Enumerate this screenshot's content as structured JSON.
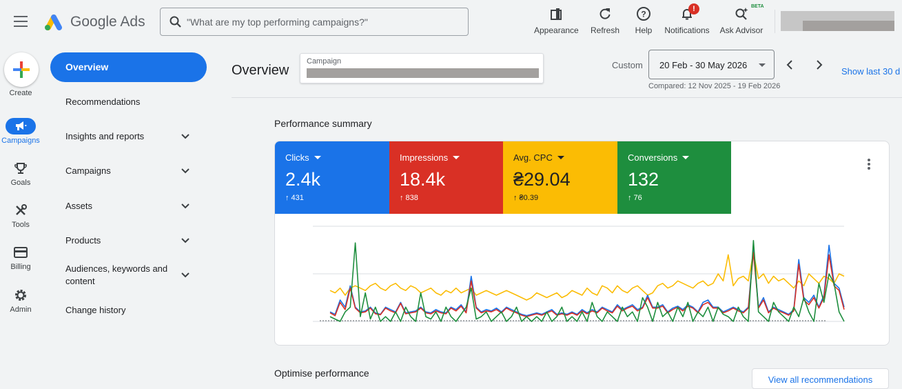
{
  "app": {
    "brand": "Google Ads"
  },
  "search": {
    "placeholder": "\"What are my top performing campaigns?\""
  },
  "toolbar": {
    "appearance": "Appearance",
    "refresh": "Refresh",
    "help": "Help",
    "notifications": "Notifications",
    "notifications_badge": "!",
    "ask_advisor": "Ask Advisor",
    "beta_tag": "BETA"
  },
  "rail": {
    "create": "Create",
    "campaigns": "Campaigns",
    "goals": "Goals",
    "tools": "Tools",
    "billing": "Billing",
    "admin": "Admin"
  },
  "nav": {
    "overview": "Overview",
    "recommendations": "Recommendations",
    "insights": "Insights and reports",
    "campaigns": "Campaigns",
    "assets": "Assets",
    "products": "Products",
    "audiences": "Audiences, keywords and content",
    "change_history": "Change history"
  },
  "header": {
    "title": "Overview",
    "campaign_label": "Campaign",
    "custom_label": "Custom",
    "date_range": "20 Feb - 30 May 2026",
    "compared": "Compared: 12 Nov 2025 - 19 Feb 2026",
    "show_last": "Show last 30 d"
  },
  "performance": {
    "title": "Performance summary",
    "metrics": [
      {
        "name": "Clicks",
        "value": "2.4k",
        "delta": "↑ 431",
        "color": "#1a73e8"
      },
      {
        "name": "Impressions",
        "value": "18.4k",
        "delta": "↑ 838",
        "color": "#d93025"
      },
      {
        "name": "Avg. CPC",
        "value": "₴29.04",
        "delta": "↑ ₴0.39",
        "color": "#fbbc04"
      },
      {
        "name": "Conversions",
        "value": "132",
        "delta": "↑ 76",
        "color": "#1e8e3e"
      }
    ]
  },
  "chart_data": {
    "type": "line",
    "series": [
      {
        "name": "Clicks",
        "color": "#1a73e8",
        "values": [
          0.2,
          0.15,
          0.45,
          0.3,
          0.75,
          0.3,
          0.2,
          0.22,
          0.3,
          0.18,
          0.15,
          0.3,
          0.25,
          0.2,
          0.4,
          0.18,
          0.2,
          0.22,
          0.3,
          0.2,
          0.18,
          0.25,
          0.2,
          0.18,
          0.3,
          0.25,
          0.35,
          0.2,
          0.95,
          0.3,
          0.2,
          0.25,
          0.22,
          0.28,
          0.2,
          0.3,
          0.25,
          0.2,
          0.15,
          0.12,
          0.15,
          0.18,
          0.15,
          0.2,
          0.25,
          0.15,
          0.18,
          0.15,
          0.2,
          0.15,
          0.25,
          0.18,
          0.25,
          0.2,
          0.3,
          0.25,
          0.2,
          0.35,
          0.25,
          0.3,
          0.35,
          0.25,
          0.3,
          0.55,
          0.3,
          0.3,
          0.35,
          0.2,
          0.28,
          0.32,
          0.25,
          0.35,
          0.3,
          0.2,
          0.4,
          0.45,
          0.3,
          0.3,
          0.2,
          0.25,
          0.3,
          0.25,
          0.2,
          0.3,
          1.55,
          0.3,
          0.5,
          0.2,
          0.3,
          0.25,
          0.2,
          0.15,
          0.25,
          1.3,
          0.5,
          0.4,
          0.55,
          0.3,
          0.55,
          1.6,
          0.8,
          0.7,
          0.3
        ]
      },
      {
        "name": "Impressions",
        "color": "#d93025",
        "values": [
          0.18,
          0.12,
          0.4,
          0.25,
          0.7,
          0.28,
          0.18,
          0.2,
          0.28,
          0.16,
          0.14,
          0.28,
          0.22,
          0.18,
          0.38,
          0.16,
          0.18,
          0.2,
          0.28,
          0.18,
          0.16,
          0.22,
          0.18,
          0.16,
          0.28,
          0.22,
          0.32,
          0.18,
          0.85,
          0.28,
          0.18,
          0.22,
          0.2,
          0.25,
          0.18,
          0.28,
          0.22,
          0.18,
          0.13,
          0.1,
          0.13,
          0.16,
          0.13,
          0.18,
          0.22,
          0.13,
          0.16,
          0.13,
          0.18,
          0.13,
          0.22,
          0.16,
          0.22,
          0.18,
          0.28,
          0.22,
          0.18,
          0.32,
          0.22,
          0.28,
          0.32,
          0.22,
          0.28,
          0.5,
          0.28,
          0.28,
          0.32,
          0.18,
          0.25,
          0.3,
          0.22,
          0.32,
          0.28,
          0.18,
          0.35,
          0.4,
          0.28,
          0.28,
          0.18,
          0.22,
          0.28,
          0.22,
          0.18,
          0.28,
          1.45,
          0.28,
          0.45,
          0.18,
          0.28,
          0.22,
          0.18,
          0.13,
          0.22,
          1.2,
          0.45,
          0.35,
          0.5,
          0.28,
          0.5,
          1.4,
          0.75,
          0.65,
          0.25
        ]
      },
      {
        "name": "Avg. CPC",
        "color": "#fbbc04",
        "values": [
          0.65,
          0.6,
          0.7,
          0.55,
          0.7,
          0.75,
          0.7,
          0.65,
          0.75,
          0.8,
          0.7,
          0.65,
          0.75,
          0.8,
          0.7,
          0.65,
          0.75,
          0.7,
          0.6,
          0.65,
          0.7,
          0.6,
          0.55,
          0.65,
          0.6,
          0.7,
          0.6,
          0.65,
          0.7,
          0.55,
          0.6,
          0.65,
          0.6,
          0.55,
          0.6,
          0.65,
          0.6,
          0.55,
          0.5,
          0.45,
          0.5,
          0.6,
          0.55,
          0.5,
          0.55,
          0.6,
          0.5,
          0.55,
          0.65,
          0.6,
          0.55,
          0.7,
          0.6,
          0.55,
          0.75,
          0.7,
          0.6,
          0.75,
          0.65,
          0.6,
          0.7,
          0.75,
          0.65,
          0.55,
          0.6,
          0.75,
          0.8,
          0.7,
          0.75,
          0.85,
          0.8,
          0.75,
          0.7,
          0.8,
          0.85,
          0.75,
          0.8,
          1.0,
          0.85,
          1.4,
          0.75,
          0.9,
          0.95,
          0.85,
          1.45,
          0.9,
          1.0,
          0.8,
          0.95,
          0.85,
          0.9,
          0.8,
          0.7,
          0.85,
          0.75,
          1.0,
          0.9,
          0.8,
          0.95,
          0.9,
          0.8,
          1.0,
          0.95
        ]
      },
      {
        "name": "Conversions",
        "color": "#1e8e3e",
        "values": [
          0.1,
          0.05,
          0.0,
          0.2,
          0.3,
          1.65,
          0.1,
          0.6,
          0.05,
          0.3,
          0.0,
          0.1,
          0.0,
          0.2,
          0.0,
          0.3,
          0.1,
          0.0,
          0.6,
          0.1,
          0.05,
          0.2,
          0.0,
          0.3,
          0.1,
          0.0,
          0.15,
          0.3,
          0.7,
          0.05,
          0.1,
          0.2,
          0.0,
          0.1,
          0.2,
          0.0,
          0.1,
          0.3,
          0.0,
          0.1,
          0.0,
          0.1,
          0.0,
          0.2,
          0.0,
          0.1,
          0.3,
          0.0,
          0.1,
          0.0,
          0.2,
          0.0,
          0.4,
          0.1,
          0.0,
          0.2,
          0.1,
          0.0,
          0.3,
          0.1,
          0.2,
          0.0,
          0.5,
          0.3,
          0.0,
          0.4,
          0.1,
          0.2,
          0.0,
          0.3,
          0.1,
          0.4,
          0.0,
          0.2,
          0.1,
          0.3,
          0.0,
          0.3,
          0.15,
          0.1,
          0.0,
          0.3,
          0.1,
          0.0,
          1.7,
          0.2,
          0.1,
          0.0,
          0.4,
          0.2,
          0.1,
          0.0,
          0.3,
          0.1,
          0.5,
          0.2,
          0.0,
          0.8,
          0.4,
          1.0,
          0.8,
          0.2,
          0.0
        ]
      }
    ],
    "ylim": [
      0,
      2
    ],
    "grid": true
  },
  "optimise": {
    "title": "Optimise performance",
    "view_all": "View all recommendations"
  }
}
